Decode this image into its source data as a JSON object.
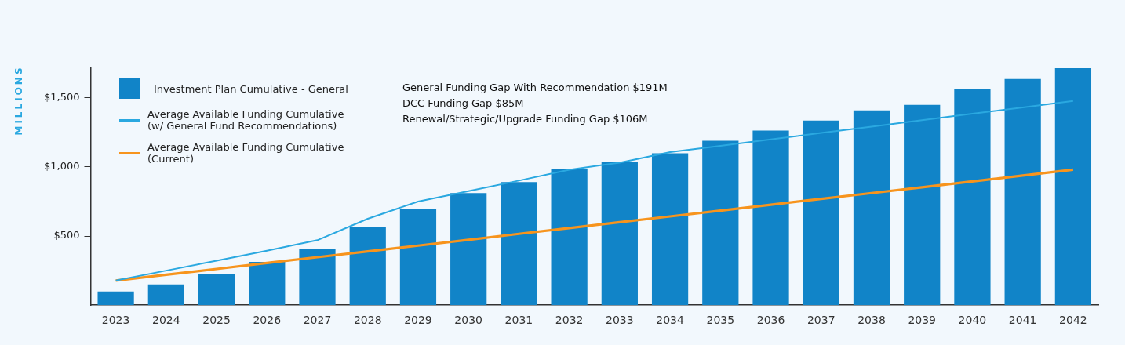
{
  "chart_data": {
    "type": "bar",
    "ylabel": "MILLIONS",
    "categories": [
      "2023",
      "2024",
      "2025",
      "2026",
      "2027",
      "2028",
      "2029",
      "2030",
      "2031",
      "2032",
      "2033",
      "2034",
      "2035",
      "2036",
      "2037",
      "2038",
      "2039",
      "2040",
      "2041",
      "2042"
    ],
    "series": [
      {
        "name": "Investment Plan Cumulative - General",
        "color": "#1184c8",
        "values": [
          99,
          150,
          223,
          313,
          404,
          568,
          698,
          811,
          890,
          986,
          1037,
          1099,
          1189,
          1263,
          1336,
          1410,
          1449,
          1562,
          1636,
          1715
        ]
      },
      {
        "name": "Average Available Funding Cumulative\n(w/ General Fund Recommendations)",
        "type": "line",
        "color": "#2aa8e0",
        "values": [
          178,
          250,
          322,
          394,
          470,
          625,
          750,
          825,
          901,
          980,
          1031,
          1107,
          1153,
          1200,
          1246,
          1292,
          1338,
          1385,
          1431,
          1477
        ]
      },
      {
        "name": "Average Available Funding Cumulative\n(Current)",
        "type": "line",
        "color": "#f7941d",
        "values": [
          178,
          220,
          262,
          305,
          347,
          389,
          431,
          473,
          516,
          558,
          600,
          642,
          684,
          727,
          769,
          811,
          853,
          895,
          938,
          980
        ]
      }
    ],
    "ylim": [
      0,
      1720
    ],
    "yticks": [
      {
        "value": 500,
        "label": "$500"
      },
      {
        "value": 1000,
        "label": "$1,000"
      },
      {
        "value": 1500,
        "label": "$1,500"
      }
    ],
    "grid": false,
    "legend": "top left",
    "marker": "none",
    "line_style": "solid",
    "annotations": [
      "General Funding Gap With Recommendation $191M",
      "DCC Funding Gap $85M",
      "Renewal/Strategic/Upgrade Funding Gap $106M"
    ]
  }
}
